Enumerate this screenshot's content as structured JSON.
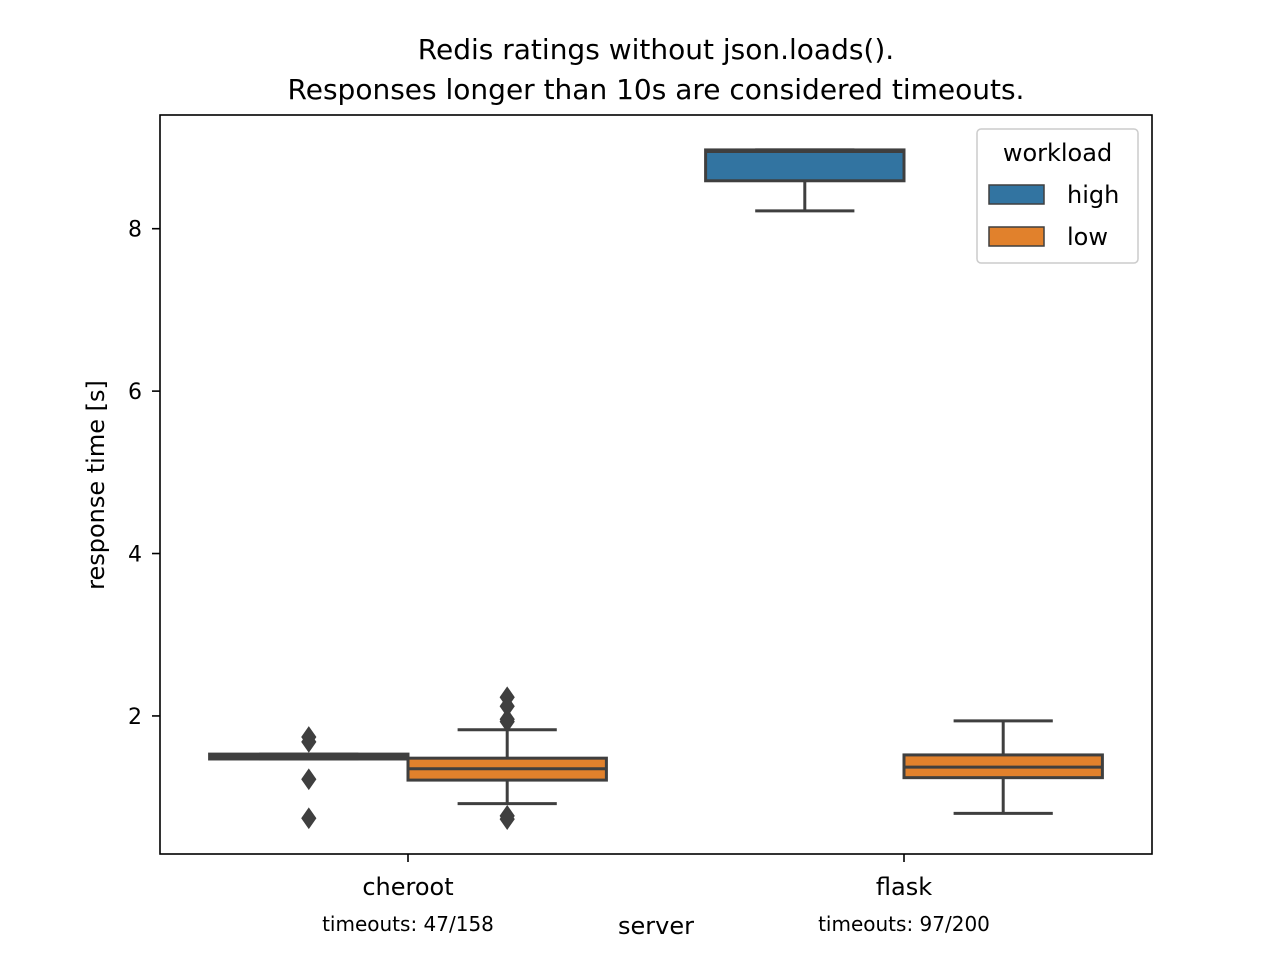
{
  "chart_data": {
    "type": "box",
    "title_lines": [
      "Redis ratings without json.loads().",
      "Responses longer than 10s are considered timeouts."
    ],
    "xlabel": "server",
    "ylabel": "response time [s]",
    "categories": [
      "cheroot",
      "flask"
    ],
    "category_notes": [
      "timeouts: 47/158",
      "timeouts: 97/200"
    ],
    "yticks": [
      2,
      4,
      6,
      8
    ],
    "ylim": [
      0.3,
      9.4
    ],
    "grid": false,
    "legend": {
      "title": "workload",
      "placement": "top-right",
      "entries": [
        {
          "label": "high",
          "color": "#3274a1"
        },
        {
          "label": "low",
          "color": "#e1812c"
        }
      ]
    },
    "series": [
      {
        "name": "high",
        "color": "#3274a1",
        "boxes": [
          {
            "category": "cheroot",
            "whisker_low": 1.47,
            "q1": 1.47,
            "median": 1.5,
            "q3": 1.53,
            "whisker_high": 1.53,
            "outliers": [
              1.74,
              1.68,
              1.22,
              0.74
            ]
          },
          {
            "category": "flask",
            "whisker_low": 8.22,
            "q1": 8.59,
            "median": 8.95,
            "q3": 8.97,
            "whisker_high": 8.97,
            "outliers": []
          }
        ]
      },
      {
        "name": "low",
        "color": "#e1812c",
        "boxes": [
          {
            "category": "cheroot",
            "whisker_low": 0.92,
            "q1": 1.21,
            "median": 1.35,
            "q3": 1.48,
            "whisker_high": 1.83,
            "outliers": [
              2.23,
              2.12,
              1.96,
              1.93,
              0.77,
              0.73
            ]
          },
          {
            "category": "flask",
            "whisker_low": 0.8,
            "q1": 1.24,
            "median": 1.37,
            "q3": 1.52,
            "whisker_high": 1.94,
            "outliers": []
          }
        ]
      }
    ]
  }
}
